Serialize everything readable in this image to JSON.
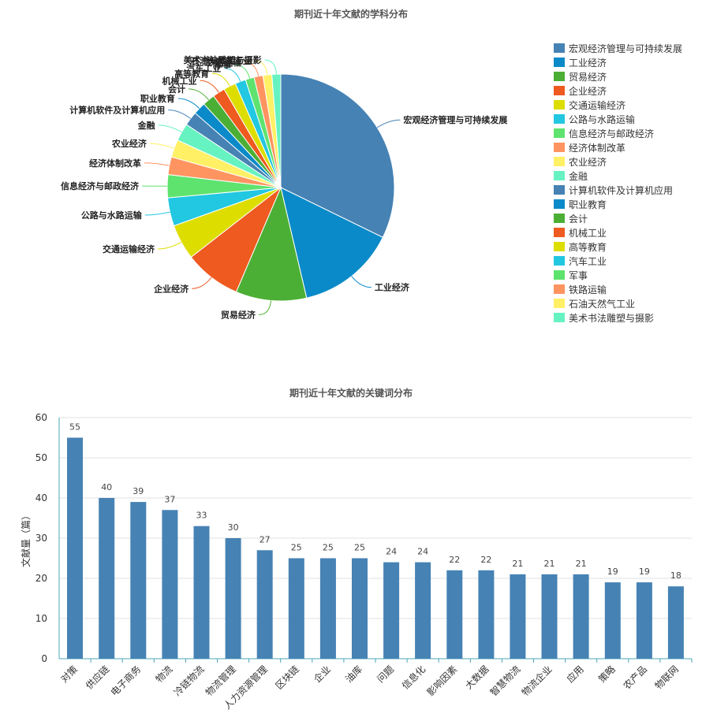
{
  "chart_data": [
    {
      "type": "pie",
      "title": "期刊近十年文献的学科分布",
      "legend_position": "right",
      "slices": [
        {
          "label": "宏观经济管理与可持续发展",
          "value": 64,
          "color": "#4682B4"
        },
        {
          "label": "工业经济",
          "value": 28,
          "color": "#0A8AC8"
        },
        {
          "label": "贸易经济",
          "value": 20,
          "color": "#4CAF35"
        },
        {
          "label": "企业经济",
          "value": 16,
          "color": "#EE5A1F"
        },
        {
          "label": "交通运输经济",
          "value": 10,
          "color": "#DDDD00"
        },
        {
          "label": "公路与水路运输",
          "value": 8,
          "color": "#22C7E1"
        },
        {
          "label": "信息经济与邮政经济",
          "value": 6.5,
          "color": "#5FE36F"
        },
        {
          "label": "经济体制改革",
          "value": 5,
          "color": "#FF9460"
        },
        {
          "label": "农业经济",
          "value": 5,
          "color": "#FFF066"
        },
        {
          "label": "金融",
          "value": 5,
          "color": "#66F2C1"
        },
        {
          "label": "计算机软件及计算机应用",
          "value": 4,
          "color": "#4682B4"
        },
        {
          "label": "职业教育",
          "value": 3.5,
          "color": "#0A8AC8"
        },
        {
          "label": "会计",
          "value": 3.5,
          "color": "#4CAF35"
        },
        {
          "label": "机械工业",
          "value": 3.5,
          "color": "#EE5A1F"
        },
        {
          "label": "高等教育",
          "value": 3.5,
          "color": "#DDDD00"
        },
        {
          "label": "汽车工业",
          "value": 3,
          "color": "#22C7E1"
        },
        {
          "label": "军事",
          "value": 2.5,
          "color": "#5FE36F"
        },
        {
          "label": "铁路运输",
          "value": 2.5,
          "color": "#FF9460"
        },
        {
          "label": "石油天然气工业",
          "value": 2.5,
          "color": "#FFF066"
        },
        {
          "label": "美术书法雕塑与摄影",
          "value": 2.5,
          "color": "#66F2C1"
        }
      ]
    },
    {
      "type": "bar",
      "title": "期刊近十年文献的关键词分布",
      "ylabel": "文献量（篇）",
      "ylim": [
        0,
        60
      ],
      "yticks": [
        0,
        10,
        20,
        30,
        40,
        50,
        60
      ],
      "bar_color": "#4682B4",
      "categories": [
        "对策",
        "供应链",
        "电子商务",
        "物流",
        "冷链物流",
        "物流管理",
        "人力资源管理",
        "区块链",
        "企业",
        "油库",
        "问题",
        "信息化",
        "影响因素",
        "大数据",
        "智慧物流",
        "物流企业",
        "应用",
        "策略",
        "农产品",
        "物联网"
      ],
      "values": [
        55,
        40,
        39,
        37,
        33,
        30,
        27,
        25,
        25,
        25,
        24,
        24,
        22,
        22,
        21,
        21,
        21,
        19,
        19,
        18
      ]
    }
  ]
}
